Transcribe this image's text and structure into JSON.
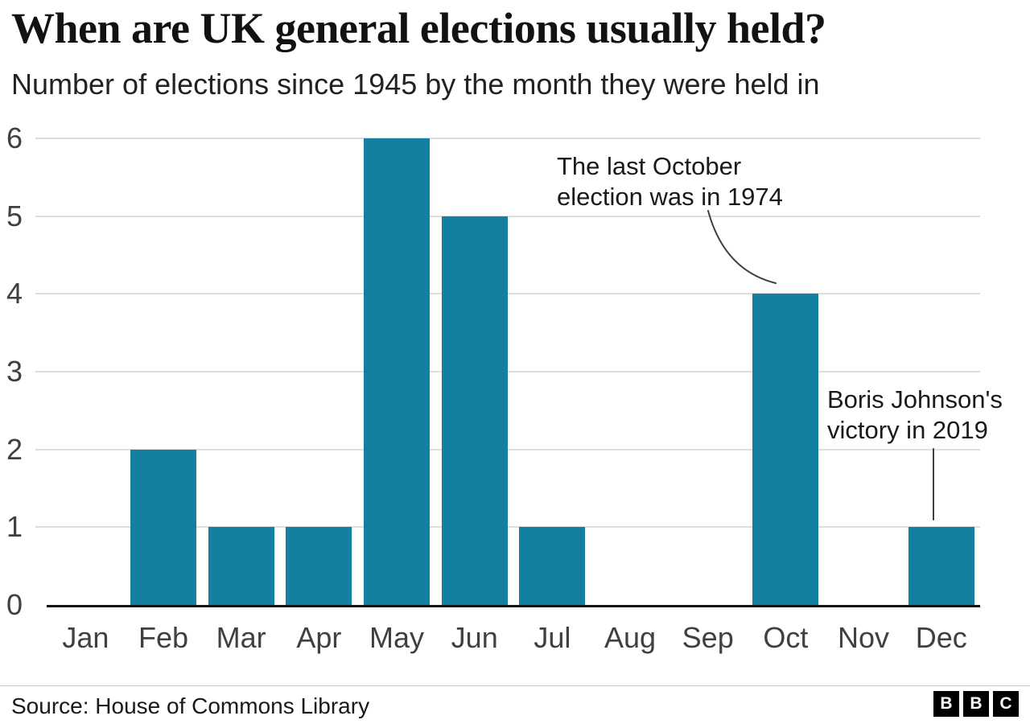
{
  "header": {
    "title": "When are UK general elections usually held?",
    "subtitle": "Number of elections since 1945 by the month they were held in"
  },
  "chart_data": {
    "type": "bar",
    "title": "When are UK general elections usually held?",
    "subtitle": "Number of elections since 1945 by the month they were held in",
    "categories": [
      "Jan",
      "Feb",
      "Mar",
      "Apr",
      "May",
      "Jun",
      "Jul",
      "Aug",
      "Sep",
      "Oct",
      "Nov",
      "Dec"
    ],
    "values": [
      0,
      2,
      1,
      1,
      6,
      5,
      1,
      0,
      0,
      4,
      0,
      1
    ],
    "xlabel": "",
    "ylabel": "",
    "ylim": [
      0,
      6
    ],
    "yticks": [
      0,
      1,
      2,
      3,
      4,
      5,
      6
    ],
    "grid": "horizontal",
    "legend": "none",
    "bar_color": "#1380a1",
    "annotations": [
      {
        "lines": [
          "The last October",
          "election was in 1974"
        ],
        "target_category": "Oct",
        "target_value": 4
      },
      {
        "lines": [
          "Boris Johnson's",
          "victory in 2019"
        ],
        "target_category": "Dec",
        "target_value": 1
      }
    ]
  },
  "footer": {
    "source": "Source: House of Commons Library",
    "logo_letters": [
      "B",
      "B",
      "C"
    ]
  }
}
